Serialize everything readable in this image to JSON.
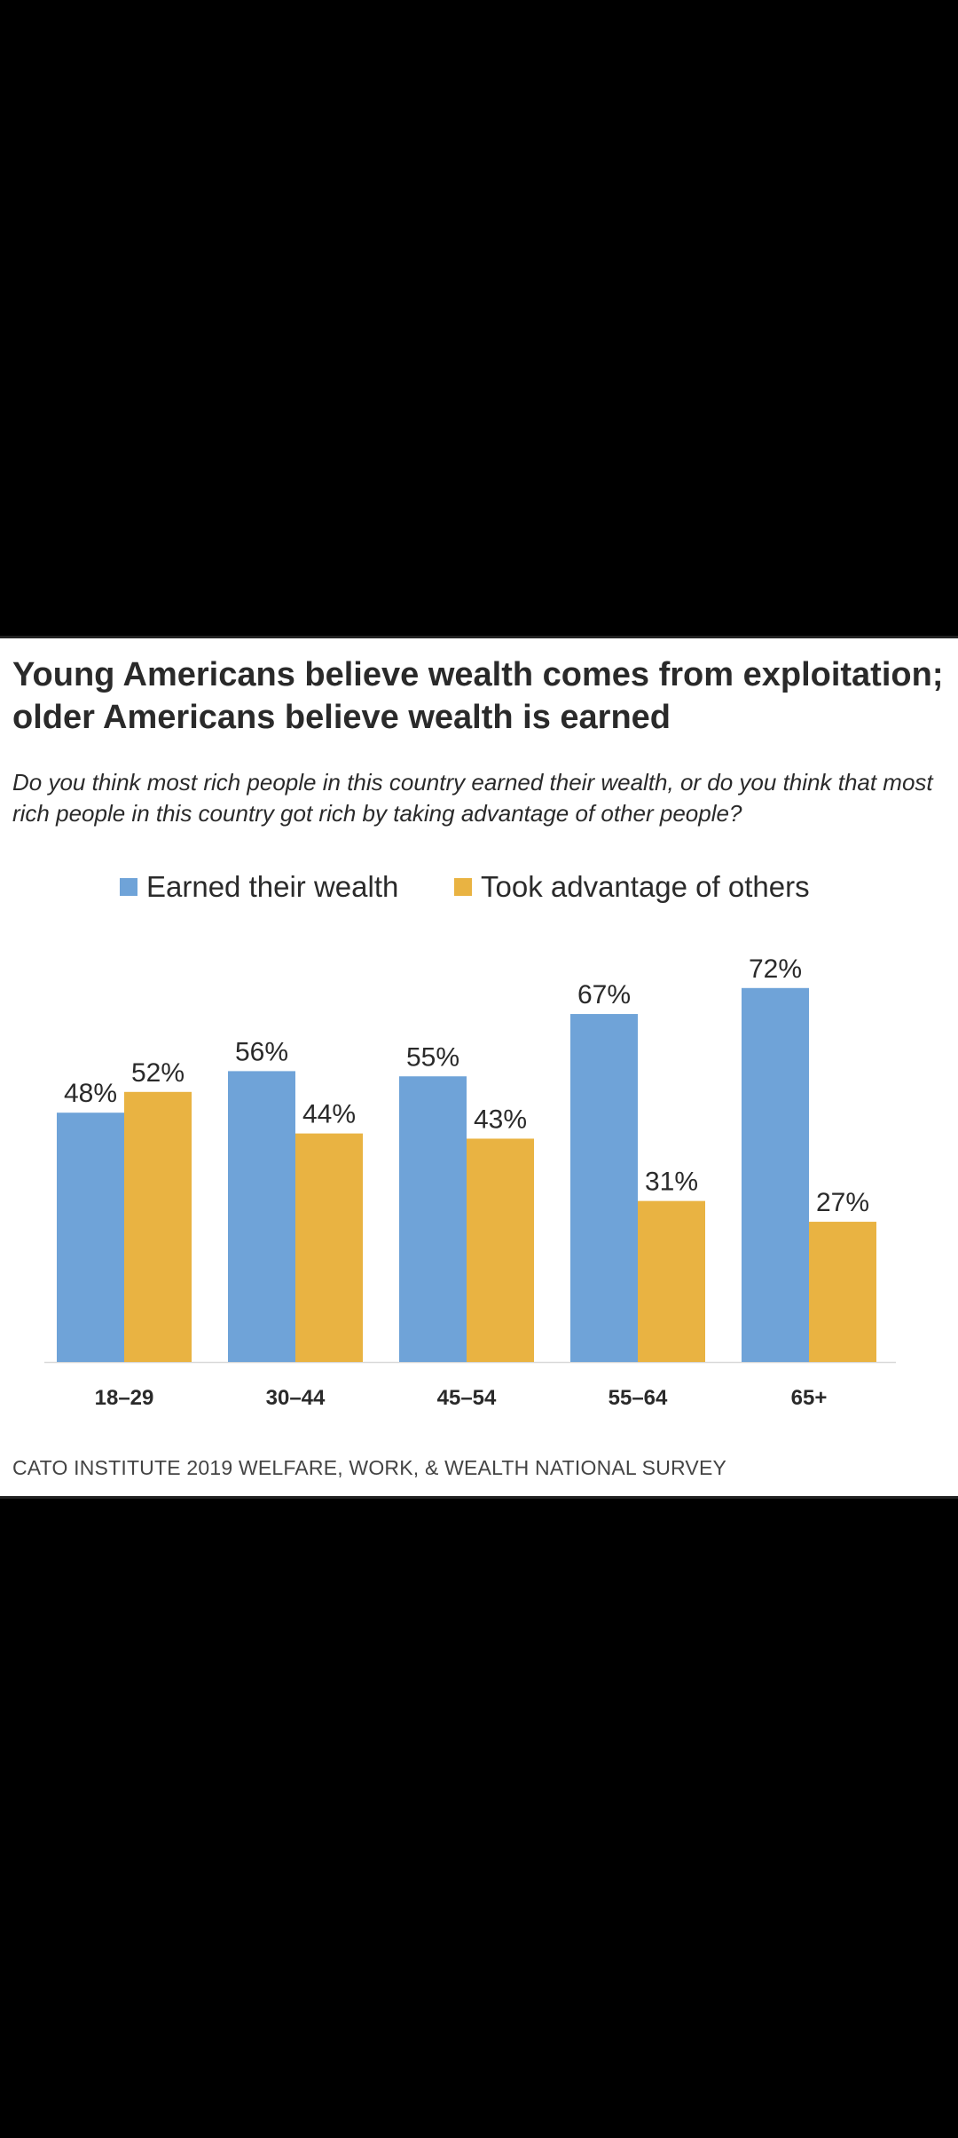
{
  "chart_data": {
    "type": "bar",
    "title": "Young Americans believe wealth comes from exploitation; older Americans believe wealth is earned",
    "subtitle": "Do you think most rich people in this country earned their wealth, or do you think that most rich people in this country got rich by taking advantage of other people?",
    "categories": [
      "18–29",
      "30–44",
      "45–54",
      "55–64",
      "65+"
    ],
    "series": [
      {
        "name": "Earned their wealth",
        "color": "#6fa3d8",
        "values": [
          48,
          56,
          55,
          67,
          72
        ],
        "labels": [
          "48%",
          "56%",
          "55%",
          "67%",
          "72%"
        ]
      },
      {
        "name": "Took advantage of others",
        "color": "#e9b342",
        "values": [
          52,
          44,
          43,
          31,
          27
        ],
        "labels": [
          "52%",
          "44%",
          "43%",
          "31%",
          "27%"
        ]
      }
    ],
    "ylim": [
      0,
      100
    ],
    "grid": false,
    "legend_placement": "top-center",
    "source": "CATO INSTITUTE 2019 WELFARE, WORK, & WEALTH NATIONAL SURVEY"
  }
}
